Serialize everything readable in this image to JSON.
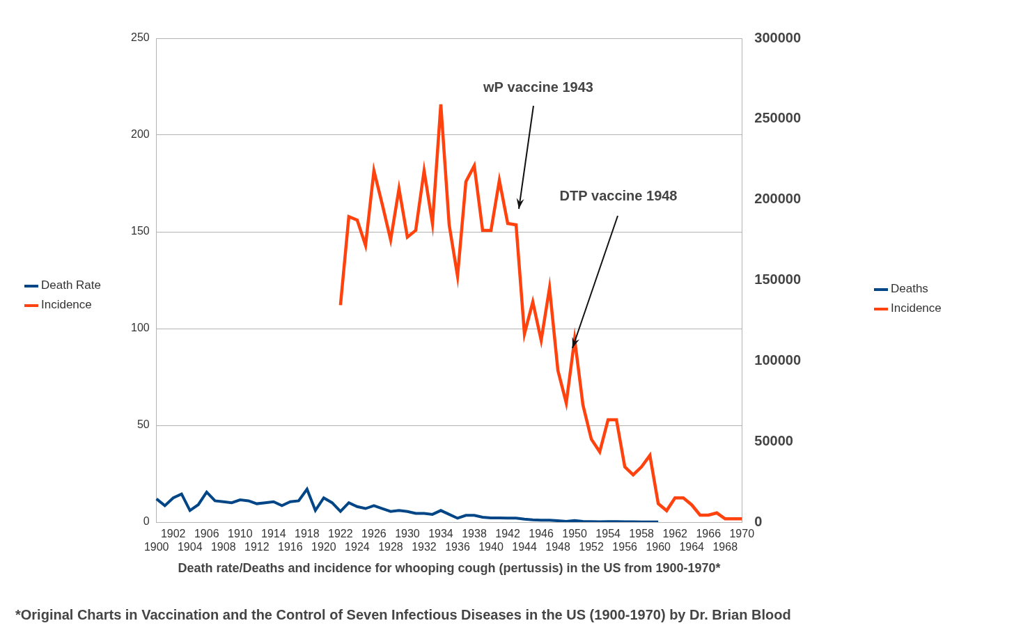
{
  "chart_data": {
    "type": "line",
    "x_label": "Death rate/Deaths and incidence for whooping cough (pertussis) in the US from 1900-1970*",
    "footnote": "*Original Charts in Vaccination and the Control of Seven Infectious Diseases in the US (1900-1970) by Dr. Brian Blood",
    "annotations": [
      {
        "text": "wP vaccine 1943"
      },
      {
        "text": "DTP vaccine 1948"
      }
    ],
    "categories": [
      "1900",
      null,
      "1902",
      null,
      "1904",
      null,
      "1906",
      null,
      "1908",
      null,
      "1910",
      null,
      "1912",
      null,
      "1914",
      null,
      "1916",
      null,
      "1918",
      null,
      "1920",
      null,
      "1922",
      null,
      "1924",
      null,
      "1926",
      null,
      "1928",
      null,
      "1930",
      null,
      "1932",
      null,
      "1934",
      null,
      "1936",
      null,
      "1938",
      null,
      "1940",
      null,
      "1942",
      null,
      "1944",
      null,
      "1946",
      null,
      "1948",
      null,
      "1950",
      null,
      "1952",
      null,
      "1954",
      null,
      "1956",
      null,
      "1958",
      null,
      "1960",
      null,
      "1962",
      null,
      "1964",
      null,
      "1966",
      null,
      "1968",
      null,
      "1970"
    ],
    "series": [
      {
        "name": "Death Rate",
        "color": "#004586",
        "axis": "y",
        "values": [
          12,
          8.5,
          12.5,
          14.5,
          6,
          9,
          15.5,
          11,
          10.5,
          10,
          11.5,
          11,
          9.5,
          10,
          10.5,
          8.5,
          10.5,
          11,
          17,
          6,
          12.5,
          10,
          5.5,
          10,
          8,
          7,
          8.5,
          7,
          5.5,
          6,
          5.5,
          4.5,
          4.5,
          4,
          6,
          4,
          2,
          3.5,
          3.5,
          2.5,
          2.2,
          2.2,
          2.1,
          2.1,
          1.5,
          1.2,
          1,
          1,
          0.7,
          0.4,
          0.8,
          0.4,
          0.3,
          0.2,
          0.3,
          0.3,
          0.2,
          0.2,
          0.1,
          0.1,
          0.1,
          null,
          null,
          null,
          null,
          null,
          null,
          null,
          null,
          null,
          null
        ]
      },
      {
        "name": "Incidence",
        "color": "#ff420e",
        "axis": "y2",
        "values": [
          null,
          null,
          null,
          null,
          null,
          null,
          null,
          null,
          null,
          null,
          null,
          null,
          null,
          null,
          null,
          null,
          null,
          null,
          null,
          null,
          null,
          null,
          134500,
          189400,
          187300,
          171600,
          217900,
          197000,
          175000,
          206700,
          176700,
          180900,
          217900,
          185200,
          259000,
          184300,
          152500,
          211100,
          221000,
          180900,
          180900,
          211900,
          185200,
          184300,
          116700,
          136500,
          112700,
          145200,
          94100,
          73900,
          113500,
          72500,
          51400,
          43600,
          63500,
          63500,
          34300,
          29300,
          34300,
          41400,
          11400,
          7100,
          15000,
          15000,
          10700,
          4300,
          4300,
          5700,
          2000,
          2000,
          2000
        ]
      }
    ],
    "right_legend": [
      "Deaths",
      "Incidence"
    ],
    "legend": "left",
    "grid": true,
    "ylim": [
      0,
      250
    ],
    "yticks": [
      0,
      50,
      100,
      150,
      200,
      250
    ],
    "y2lim": [
      0,
      300000
    ],
    "y2ticks": [
      0,
      50000,
      100000,
      150000,
      200000,
      250000,
      300000
    ]
  }
}
